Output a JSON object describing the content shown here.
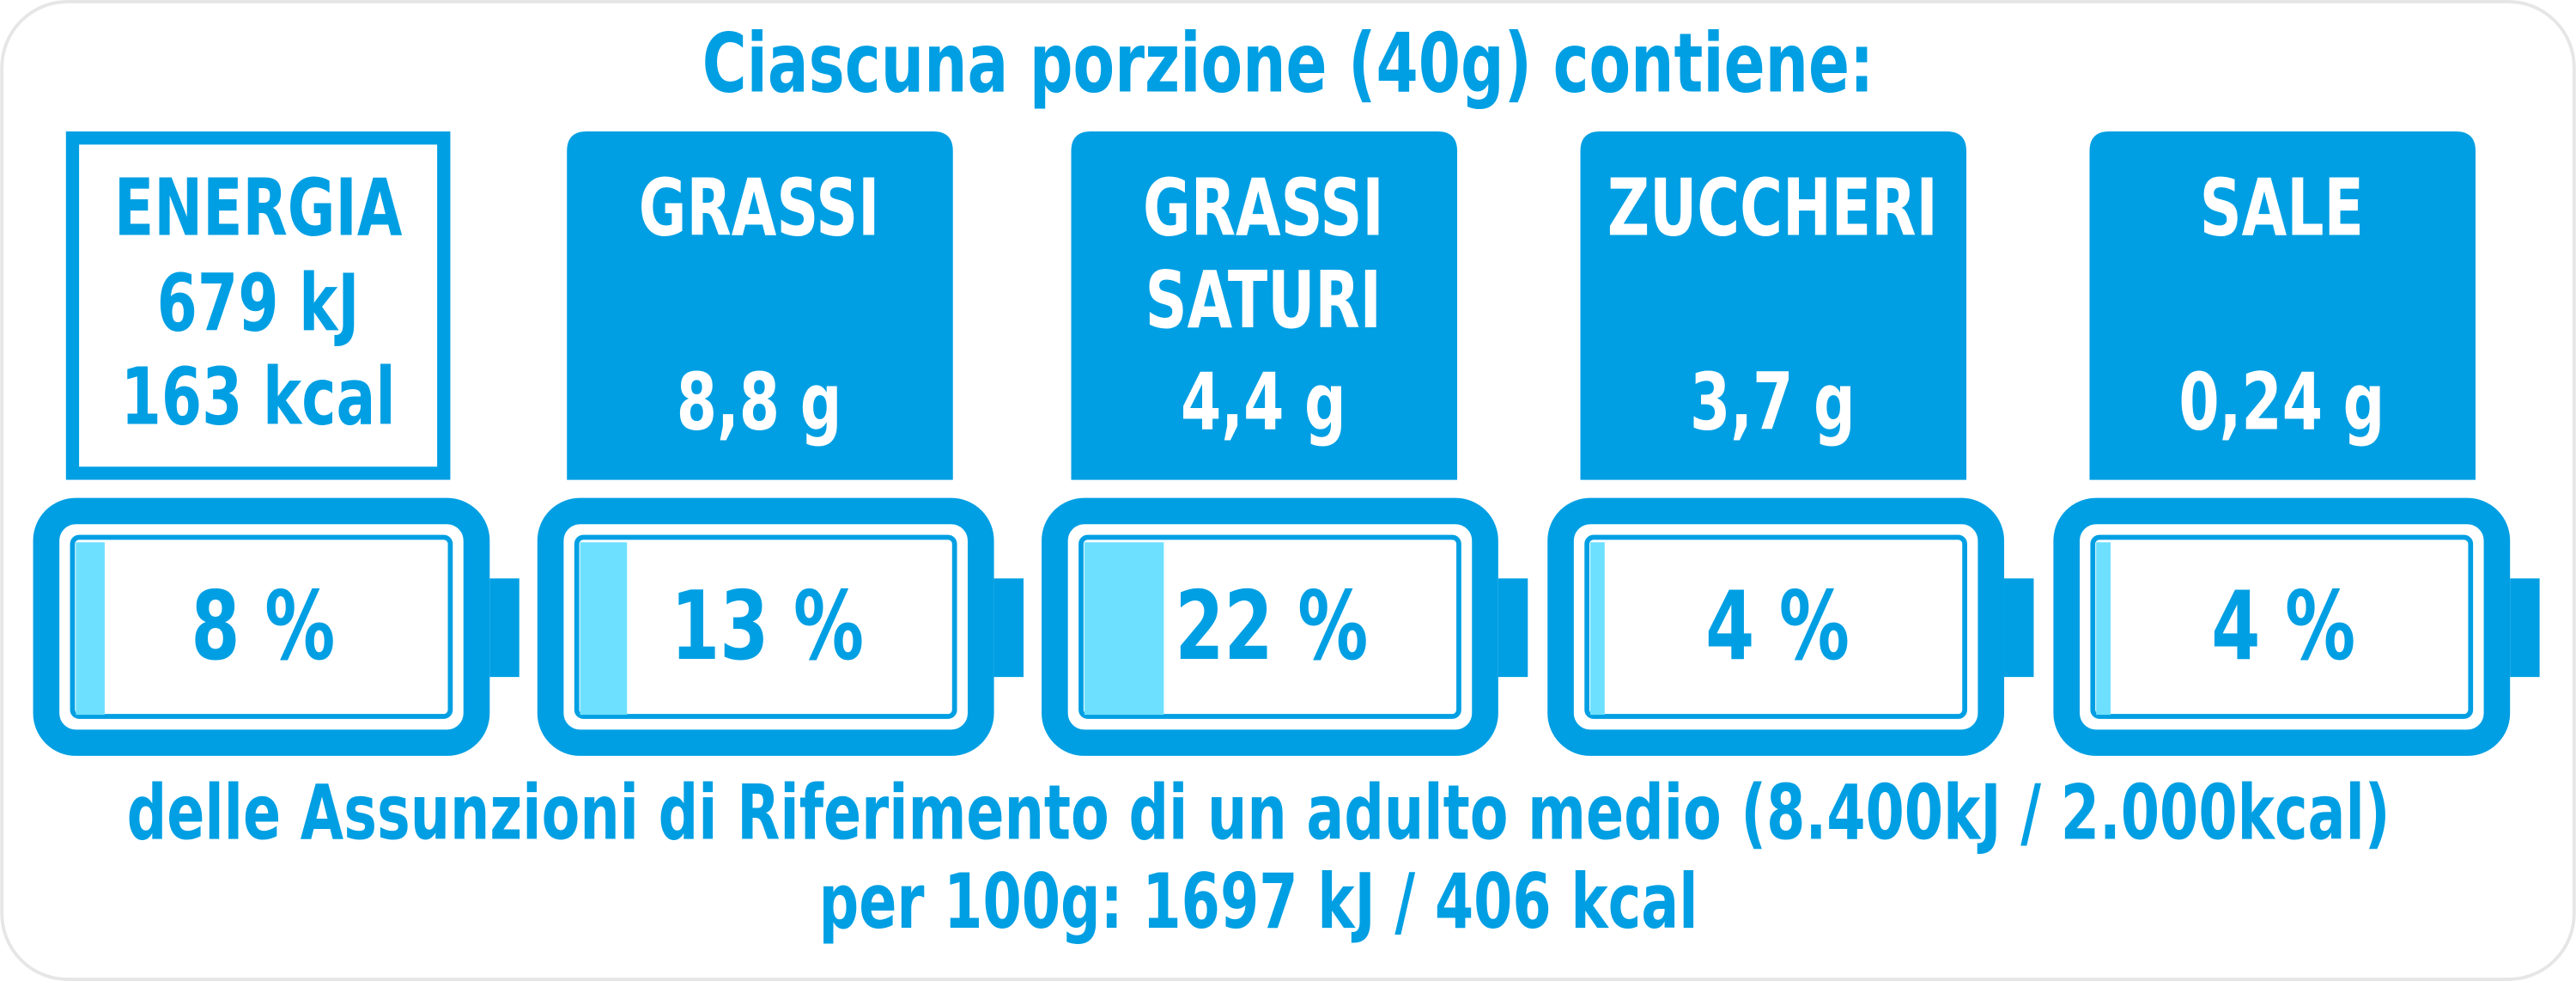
{
  "title": "Ciascuna porzione (40g) contiene:",
  "items": [
    {
      "name": [
        "ENERGIA"
      ],
      "amount": [
        "679 kJ",
        "163 kcal"
      ],
      "percent": {
        "value": 8,
        "label": "8 %"
      }
    },
    {
      "name": [
        "GRASSI"
      ],
      "amount": [
        "8,8 g"
      ],
      "percent": {
        "value": 13,
        "label": "13 %"
      }
    },
    {
      "name": [
        "GRASSI",
        "SATURI"
      ],
      "amount": [
        "4,4 g"
      ],
      "percent": {
        "value": 22,
        "label": "22 %"
      }
    },
    {
      "name": [
        "ZUCCHERI"
      ],
      "amount": [
        "3,7 g"
      ],
      "percent": {
        "value": 4,
        "label": "4 %"
      }
    },
    {
      "name": [
        "SALE"
      ],
      "amount": [
        "0,24 g"
      ],
      "percent": {
        "value": 4,
        "label": "4 %"
      }
    }
  ],
  "footer": [
    "delle Assunzioni di Riferimento di un adulto medio (8.400kJ / 2.000kcal)",
    "per 100g: 1697 kJ / 406 kcal"
  ]
}
